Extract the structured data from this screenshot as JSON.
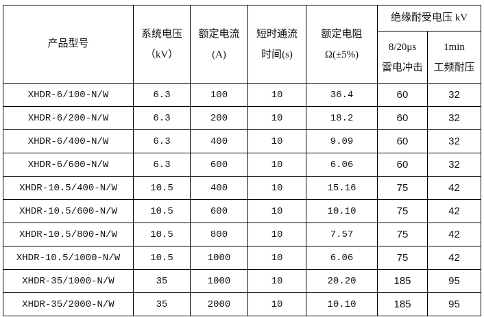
{
  "headers": {
    "model": "产品型号",
    "voltage": [
      "系统电压",
      "（kV）"
    ],
    "current": [
      "额定电流",
      "(A)"
    ],
    "time": [
      "短时通流",
      "时间(s)"
    ],
    "resistance": [
      "额定电阻",
      "Ω(±5%)"
    ],
    "insulation": "绝缘耐受电压 kV",
    "lightning": [
      "8/20μs",
      "雷电冲击"
    ],
    "power_freq": [
      "1min",
      "工频耐压"
    ]
  },
  "rows": [
    [
      "XHDR-6/100-N/W",
      "6.3",
      "100",
      "10",
      "36.4",
      "60",
      "32"
    ],
    [
      "XHDR-6/200-N/W",
      "6.3",
      "200",
      "10",
      "18.2",
      "60",
      "32"
    ],
    [
      "XHDR-6/400-N/W",
      "6.3",
      "400",
      "10",
      "9.09",
      "60",
      "32"
    ],
    [
      "XHDR-6/600-N/W",
      "6.3",
      "600",
      "10",
      "6.06",
      "60",
      "32"
    ],
    [
      "XHDR-10.5/400-N/W",
      "10.5",
      "400",
      "10",
      "15.16",
      "75",
      "42"
    ],
    [
      "XHDR-10.5/600-N/W",
      "10.5",
      "600",
      "10",
      "10.10",
      "75",
      "42"
    ],
    [
      "XHDR-10.5/800-N/W",
      "10.5",
      "800",
      "10",
      "7.57",
      "75",
      "42"
    ],
    [
      "XHDR-10.5/1000-N/W",
      "10.5",
      "1000",
      "10",
      "6.06",
      "75",
      "42"
    ],
    [
      "XHDR-35/1000-N/W",
      "35",
      "1000",
      "10",
      "20.20",
      "185",
      "95"
    ],
    [
      "XHDR-35/2000-N/W",
      "35",
      "2000",
      "10",
      "10.10",
      "185",
      "95"
    ]
  ]
}
